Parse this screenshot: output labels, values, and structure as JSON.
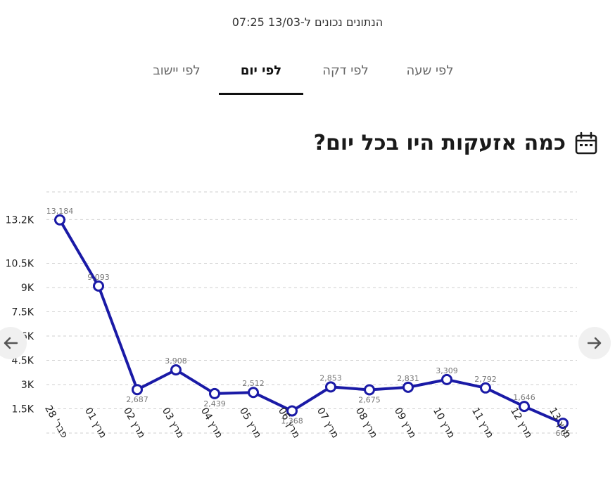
{
  "updated_text": "הנתונים נכונים ל-13/03 07:25",
  "tabs": [
    {
      "label": "לפי שעה",
      "active": false
    },
    {
      "label": "לפי דקה",
      "active": false
    },
    {
      "label": "לפי יום",
      "active": true
    },
    {
      "label": "לפי יישוב",
      "active": false
    }
  ],
  "heading": {
    "title": "כמה אזעקות היו בכל יום?",
    "icon": "calendar-icon"
  },
  "nav": {
    "prev_icon": "arrow-left-icon",
    "next_icon": "arrow-right-icon"
  },
  "colors": {
    "line": "#1a1aa6",
    "grid": "#cfcfcf",
    "label": "#777777",
    "tick": "#222222"
  },
  "chart_data": {
    "type": "line",
    "title": "",
    "xlabel": "",
    "ylabel": "",
    "categories": [
      "פבר' 28",
      "מרץ 01",
      "מרץ 02",
      "מרץ 03",
      "מרץ 04",
      "מרץ 05",
      "מרץ 06",
      "מרץ 07",
      "מרץ 08",
      "מרץ 09",
      "מרץ 10",
      "מרץ 11",
      "מרץ 12",
      "מרץ 13"
    ],
    "values": [
      13184,
      9093,
      2687,
      3908,
      2439,
      2512,
      1368,
      2853,
      2675,
      2831,
      3309,
      2792,
      1646,
      605
    ],
    "value_labels": [
      "13,184",
      "9,093",
      "2,687",
      "3,908",
      "2,439",
      "2,512",
      "1,368",
      "2,853",
      "2,675",
      "2,831",
      "3,309",
      "2,792",
      "1,646",
      "605"
    ],
    "y_ticks": [
      1500,
      3000,
      4500,
      6000,
      7500,
      9000,
      10500,
      13200
    ],
    "y_tick_labels": [
      "1.5K",
      "3K",
      "4.5K",
      "6K",
      "7.5K",
      "9K",
      "10.5K",
      "13.2K"
    ],
    "ylim": [
      0,
      15000
    ],
    "grid": true
  }
}
